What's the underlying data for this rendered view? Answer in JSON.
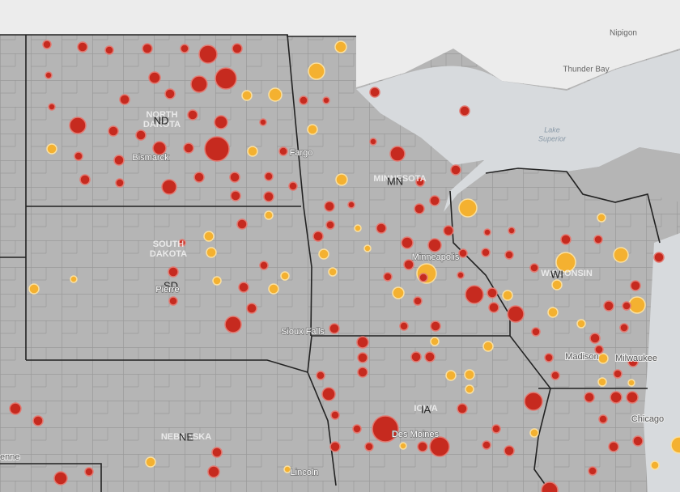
{
  "labels": [
    "Nipigon",
    "Thunder Bay",
    "Lake",
    "Superior",
    "NORTH",
    "DAKOTA",
    "ND",
    "Bismarck",
    "Fargo",
    "MINNESOTA",
    "MN",
    "Minneapolis",
    "SOUTH",
    "DAKOTA",
    "SD",
    "Pierre",
    "Sioux Falls",
    "WISCONSIN",
    "WI",
    "Madison",
    "Milwaukee",
    "IOWA",
    "IA",
    "Des Moines",
    "NEBRASKA",
    "NE",
    "Lincoln",
    "Chicago",
    "enne"
  ]
}
